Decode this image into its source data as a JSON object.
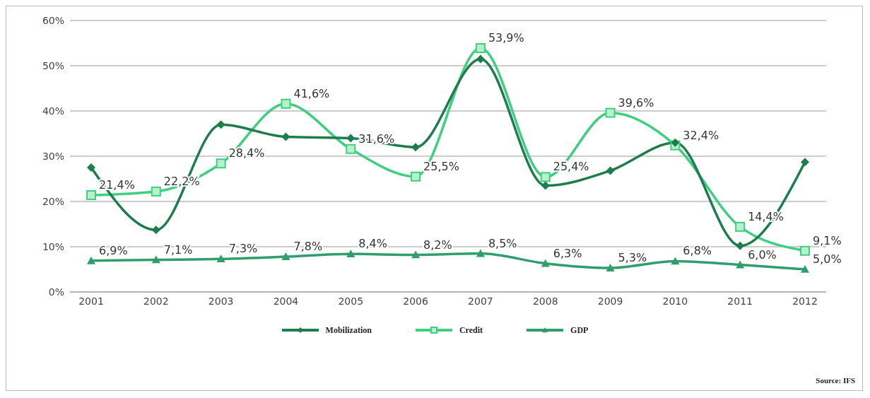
{
  "chart_data": {
    "type": "line",
    "categories": [
      "2001",
      "2002",
      "2003",
      "2004",
      "2005",
      "2006",
      "2007",
      "2008",
      "2009",
      "2010",
      "2011",
      "2012"
    ],
    "series": [
      {
        "name": "Mobilization",
        "color": "#1e7d4c",
        "marker": "diamond",
        "values": [
          27.5,
          13.7,
          37,
          34.3,
          34,
          32,
          51.5,
          23.5,
          26.8,
          33,
          10.2,
          28.7
        ]
      },
      {
        "name": "Credit",
        "color": "#3fcf80",
        "marker": "square",
        "values": [
          21.4,
          22.2,
          28.4,
          41.6,
          31.6,
          25.5,
          53.9,
          25.4,
          39.6,
          32.4,
          14.4,
          9.1
        ],
        "value_labels": [
          "21,4%",
          "22,2%",
          "28,4%",
          "41,6%",
          "31,6%",
          "25,5%",
          "53,9%",
          "25,4%",
          "39,6%",
          "32,4%",
          "14,4%",
          "9,1%"
        ]
      },
      {
        "name": "GDP",
        "color": "#2f9e6c",
        "marker": "triangle",
        "values": [
          6.9,
          7.1,
          7.3,
          7.8,
          8.4,
          8.2,
          8.5,
          6.3,
          5.3,
          6.8,
          6.0,
          5.0
        ],
        "value_labels": [
          "6,9%",
          "7,1%",
          "7,3%",
          "7,8%",
          "8,4%",
          "8,2%",
          "8,5%",
          "6,3%",
          "5,3%",
          "6,8%",
          "6,0%",
          "5,0%"
        ]
      }
    ],
    "ylim": [
      0,
      60
    ],
    "yticks": [
      {
        "value": 0,
        "label": "0%"
      },
      {
        "value": 10,
        "label": "10%"
      },
      {
        "value": 20,
        "label": "20%"
      },
      {
        "value": 30,
        "label": "30%"
      },
      {
        "value": 40,
        "label": "40%"
      },
      {
        "value": 50,
        "label": "50%"
      },
      {
        "value": 60,
        "label": "60%"
      }
    ],
    "grid": "y",
    "legend": "bottom",
    "line_style": "solid",
    "annotations": [
      "Source: IFS"
    ]
  }
}
